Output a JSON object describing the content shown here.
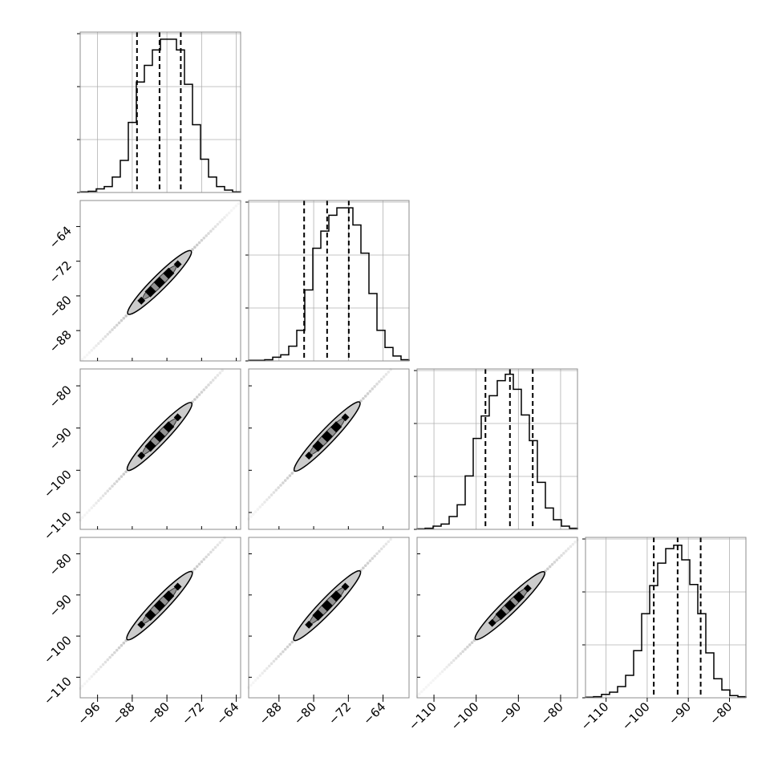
{
  "chart_data": {
    "type": "corner",
    "parameters": [
      {
        "range": [
          -100,
          -63
        ],
        "ticks": [
          -96,
          -88,
          -80,
          -72,
          -64
        ]
      },
      {
        "range": [
          -95,
          -58
        ],
        "ticks": [
          -88,
          -80,
          -72,
          -64
        ]
      },
      {
        "range": [
          -114,
          -76
        ],
        "ticks": [
          -110,
          -100,
          -90,
          -80
        ]
      },
      {
        "range": [
          -115,
          -76
        ],
        "ticks": [
          -110,
          -100,
          -90,
          -80
        ]
      }
    ],
    "diagonal_yticks": [
      {
        "ticks": [
          "",
          "",
          "",
          ""
        ]
      },
      {
        "ticks": [
          "",
          "",
          "",
          ""
        ]
      },
      {
        "ticks": [
          "",
          "",
          "",
          ""
        ]
      },
      {
        "ticks": [
          "",
          "",
          "",
          ""
        ]
      }
    ],
    "marginals": [
      {
        "edges_start": -100,
        "bin_width": 1.85,
        "counts": [
          0.5,
          1,
          3,
          5,
          13,
          27,
          59,
          93,
          107,
          120,
          129,
          129,
          120,
          91,
          57,
          28,
          13,
          5,
          2,
          0.5
        ],
        "quantiles": [
          -86.9,
          -81.7,
          -76.8
        ],
        "ymax": 135
      },
      {
        "edges_start": -95,
        "bin_width": 1.85,
        "counts": [
          0.5,
          0.5,
          1,
          3,
          5,
          12,
          25,
          58,
          92,
          106,
          119,
          125,
          125,
          111,
          88,
          55,
          25,
          11,
          4,
          1
        ],
        "quantiles": [
          -82.2,
          -76.9,
          -71.9
        ],
        "ymax": 131
      },
      {
        "edges_start": -114,
        "bin_width": 1.9,
        "counts": [
          0.5,
          1,
          3,
          5,
          12,
          23,
          50,
          85,
          106,
          125,
          139,
          145,
          131,
          107,
          83,
          44,
          20,
          9,
          3,
          1
        ],
        "quantiles": [
          -97.8,
          -92.0,
          -86.6
        ],
        "ymax": 150
      },
      {
        "edges_start": -115,
        "bin_width": 1.95,
        "counts": [
          0.5,
          1,
          3,
          5,
          10,
          20,
          42,
          75,
          100,
          120,
          133,
          136,
          123,
          101,
          75,
          40,
          17,
          7,
          2,
          1
        ],
        "quantiles": [
          -98.4,
          -92.6,
          -87.0
        ],
        "ymax": 143
      }
    ],
    "pairs": [
      {
        "x": 0,
        "y": 1,
        "center": [
          -81.7,
          -76.9
        ],
        "slope": 1.0
      },
      {
        "x": 0,
        "y": 2,
        "center": [
          -81.7,
          -92.0
        ],
        "slope": 1.08
      },
      {
        "x": 0,
        "y": 3,
        "center": [
          -81.7,
          -92.6
        ],
        "slope": 1.1
      },
      {
        "x": 1,
        "y": 2,
        "center": [
          -76.9,
          -92.0
        ],
        "slope": 1.08
      },
      {
        "x": 1,
        "y": 3,
        "center": [
          -76.9,
          -92.6
        ],
        "slope": 1.1
      },
      {
        "x": 2,
        "y": 3,
        "center": [
          -92.0,
          -92.6
        ],
        "slope": 1.0
      }
    ],
    "grid": true
  }
}
